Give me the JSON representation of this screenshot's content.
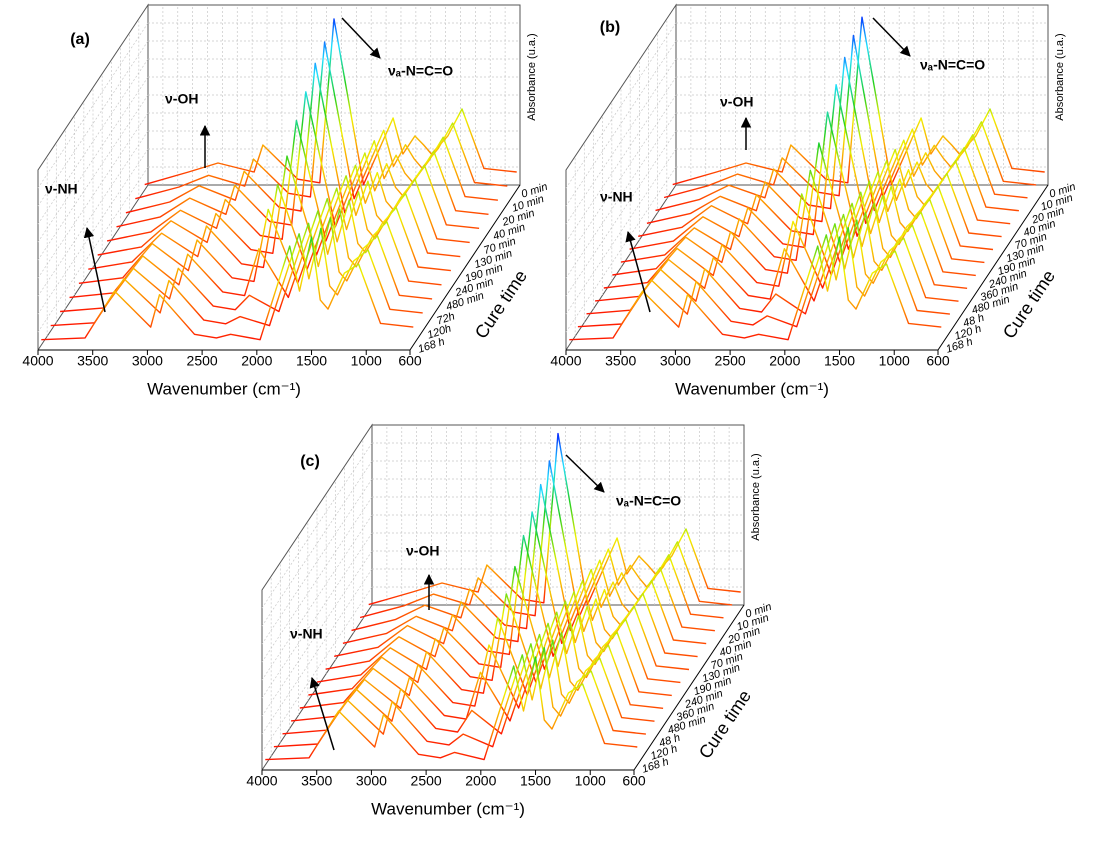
{
  "chart_data": [
    {
      "type": "waterfall",
      "panel_label": "(a)",
      "x_label": "Wavenumber (cm⁻¹)",
      "z_label": "Absorbance (u.a.)",
      "depth_label": "Cure time",
      "annotations": [
        "ν-NH",
        "ν-OH",
        "νₐ-N=C=O"
      ],
      "x": [
        4000,
        3600,
        3330,
        3000,
        2920,
        2600,
        2400,
        2270,
        2000,
        1730,
        1640,
        1530,
        1450,
        1380,
        1230,
        1100,
        900,
        600
      ],
      "xlim": [
        4000,
        600
      ],
      "xticks": [
        4000,
        3500,
        3000,
        2500,
        2000,
        1500,
        1000,
        600
      ],
      "zlim": [
        0,
        10
      ],
      "colormap": [
        "#ff0000",
        "#ff9000",
        "#f0f000",
        "#20d020",
        "#20e0ff",
        "#0010ff"
      ],
      "series": [
        {
          "name": "0 min",
          "values": [
            0.3,
            1.0,
            1.5,
            1.0,
            2.5,
            0.6,
            0.4,
            9.5,
            0.3,
            4.0,
            2.0,
            3.0,
            2.5,
            2.0,
            3.0,
            4.5,
            1.2,
            1.0
          ]
        },
        {
          "name": "10 min",
          "values": [
            0.3,
            0.95,
            1.6,
            1.0,
            2.5,
            0.6,
            0.4,
            9.0,
            0.3,
            4.1,
            2.1,
            3.3,
            2.5,
            2.0,
            3.1,
            4.5,
            1.2,
            1.0
          ]
        },
        {
          "name": "20 min",
          "values": [
            0.3,
            0.9,
            1.8,
            1.0,
            2.6,
            0.6,
            0.4,
            8.6,
            0.3,
            4.3,
            2.2,
            3.5,
            2.5,
            2.0,
            3.2,
            4.5,
            1.2,
            1.0
          ]
        },
        {
          "name": "40 min",
          "values": [
            0.3,
            0.85,
            1.9,
            1.0,
            2.6,
            0.6,
            0.4,
            7.8,
            0.3,
            4.4,
            2.3,
            3.8,
            2.5,
            2.0,
            3.3,
            4.5,
            1.2,
            1.0
          ]
        },
        {
          "name": "70 min",
          "values": [
            0.3,
            0.8,
            2.0,
            1.0,
            2.6,
            0.6,
            0.4,
            7.0,
            0.3,
            4.5,
            2.4,
            4.1,
            2.5,
            2.0,
            3.4,
            4.5,
            1.2,
            1.0
          ]
        },
        {
          "name": "130 min",
          "values": [
            0.3,
            0.75,
            2.2,
            1.0,
            2.6,
            0.6,
            0.4,
            5.8,
            0.3,
            4.7,
            2.5,
            4.4,
            2.5,
            2.0,
            3.5,
            4.5,
            1.2,
            1.0
          ]
        },
        {
          "name": "190 min",
          "values": [
            0.3,
            0.7,
            2.3,
            1.0,
            2.7,
            0.6,
            0.4,
            5.0,
            0.3,
            4.8,
            2.5,
            4.6,
            2.5,
            2.0,
            3.5,
            4.5,
            1.2,
            1.0
          ]
        },
        {
          "name": "240 min",
          "values": [
            0.3,
            0.6,
            2.5,
            1.0,
            2.7,
            0.6,
            0.4,
            4.4,
            0.3,
            5.0,
            2.6,
            4.9,
            2.5,
            2.0,
            3.6,
            4.5,
            1.2,
            1.0
          ]
        },
        {
          "name": "480 min",
          "values": [
            0.3,
            0.55,
            2.6,
            1.0,
            2.7,
            0.6,
            0.4,
            3.0,
            0.3,
            5.1,
            2.7,
            5.2,
            2.5,
            2.0,
            3.7,
            4.5,
            1.2,
            1.0
          ]
        },
        {
          "name": "72h",
          "values": [
            0.3,
            0.5,
            2.7,
            1.0,
            2.7,
            0.6,
            0.4,
            1.2,
            0.3,
            5.2,
            2.8,
            5.5,
            2.5,
            2.0,
            3.8,
            4.5,
            1.2,
            1.0
          ]
        },
        {
          "name": "120h",
          "values": [
            0.3,
            0.45,
            2.9,
            1.0,
            2.8,
            0.6,
            0.4,
            0.8,
            0.3,
            5.4,
            2.9,
            5.7,
            2.5,
            2.0,
            3.9,
            4.5,
            1.2,
            1.0
          ]
        },
        {
          "name": "168 h",
          "values": [
            0.3,
            0.4,
            3.0,
            1.0,
            2.8,
            0.6,
            0.4,
            0.6,
            0.3,
            5.5,
            3.0,
            6.0,
            2.5,
            2.0,
            4.0,
            4.5,
            1.2,
            1.0
          ]
        }
      ]
    },
    {
      "type": "waterfall",
      "panel_label": "(b)",
      "x_label": "Wavenumber (cm⁻¹)",
      "z_label": "Absorbance (u.a.)",
      "depth_label": "Cure time",
      "annotations": [
        "ν-NH",
        "ν-OH",
        "νₐ-N=C=O"
      ],
      "x": [
        4000,
        3600,
        3330,
        3000,
        2920,
        2600,
        2400,
        2270,
        2000,
        1730,
        1640,
        1530,
        1450,
        1380,
        1230,
        1100,
        900,
        600
      ],
      "xlim": [
        4000,
        600
      ],
      "xticks": [
        4000,
        3500,
        3000,
        2500,
        2000,
        1500,
        1000,
        600
      ],
      "zlim": [
        0,
        10
      ],
      "colormap": [
        "#ff0000",
        "#ff9000",
        "#f0f000",
        "#20d020",
        "#20e0ff",
        "#0010ff"
      ],
      "series": [
        {
          "name": "0 min",
          "values": [
            0.3,
            1.0,
            1.5,
            1.0,
            2.5,
            0.6,
            0.4,
            9.6,
            0.3,
            4.0,
            2.0,
            3.0,
            2.5,
            2.0,
            3.0,
            4.5,
            1.2,
            1.0
          ]
        },
        {
          "name": "10 min",
          "values": [
            0.3,
            0.95,
            1.6,
            1.0,
            2.5,
            0.6,
            0.4,
            9.3,
            0.3,
            4.1,
            2.1,
            3.2,
            2.5,
            2.0,
            3.1,
            4.5,
            1.2,
            1.0
          ]
        },
        {
          "name": "20 min",
          "values": [
            0.3,
            0.9,
            1.7,
            1.0,
            2.6,
            0.6,
            0.4,
            8.8,
            0.3,
            4.2,
            2.2,
            3.5,
            2.5,
            2.0,
            3.2,
            4.5,
            1.2,
            1.0
          ]
        },
        {
          "name": "40 min",
          "values": [
            0.3,
            0.85,
            1.8,
            1.0,
            2.6,
            0.6,
            0.4,
            8.0,
            0.3,
            4.4,
            2.3,
            3.7,
            2.5,
            2.0,
            3.3,
            4.5,
            1.2,
            1.0
          ]
        },
        {
          "name": "70 min",
          "values": [
            0.3,
            0.8,
            2.0,
            1.0,
            2.6,
            0.6,
            0.4,
            7.2,
            0.3,
            4.5,
            2.3,
            4.0,
            2.5,
            2.0,
            3.3,
            4.5,
            1.2,
            1.0
          ]
        },
        {
          "name": "130 min",
          "values": [
            0.3,
            0.75,
            2.1,
            1.0,
            2.6,
            0.6,
            0.4,
            6.2,
            0.3,
            4.6,
            2.4,
            4.2,
            2.5,
            2.0,
            3.4,
            4.5,
            1.2,
            1.0
          ]
        },
        {
          "name": "190 min",
          "values": [
            0.3,
            0.7,
            2.2,
            1.0,
            2.7,
            0.6,
            0.4,
            5.4,
            0.3,
            4.8,
            2.5,
            4.5,
            2.5,
            2.0,
            3.5,
            4.5,
            1.2,
            1.0
          ]
        },
        {
          "name": "240 min",
          "values": [
            0.3,
            0.65,
            2.4,
            1.0,
            2.7,
            0.6,
            0.4,
            4.8,
            0.3,
            4.9,
            2.6,
            4.7,
            2.5,
            2.0,
            3.6,
            4.5,
            1.2,
            1.0
          ]
        },
        {
          "name": "360 min",
          "values": [
            0.3,
            0.6,
            2.5,
            1.0,
            2.7,
            0.6,
            0.4,
            4.0,
            0.3,
            5.0,
            2.6,
            5.0,
            2.5,
            2.0,
            3.7,
            4.5,
            1.2,
            1.0
          ]
        },
        {
          "name": "480 min",
          "values": [
            0.3,
            0.55,
            2.6,
            1.0,
            2.7,
            0.6,
            0.4,
            3.2,
            0.3,
            5.1,
            2.7,
            5.2,
            2.5,
            2.0,
            3.7,
            4.5,
            1.2,
            1.0
          ]
        },
        {
          "name": "48 h",
          "values": [
            0.3,
            0.5,
            2.8,
            1.0,
            2.8,
            0.6,
            0.4,
            1.4,
            0.3,
            5.3,
            2.8,
            5.5,
            2.5,
            2.0,
            3.8,
            4.5,
            1.2,
            1.0
          ]
        },
        {
          "name": "120 h",
          "values": [
            0.3,
            0.45,
            2.9,
            1.0,
            2.8,
            0.6,
            0.4,
            0.9,
            0.3,
            5.4,
            2.9,
            5.8,
            2.5,
            2.0,
            3.9,
            4.5,
            1.2,
            1.0
          ]
        },
        {
          "name": "168 h",
          "values": [
            0.3,
            0.4,
            3.0,
            1.0,
            2.8,
            0.6,
            0.4,
            0.6,
            0.3,
            5.5,
            3.0,
            6.0,
            2.5,
            2.0,
            4.0,
            4.5,
            1.2,
            1.0
          ]
        }
      ]
    },
    {
      "type": "waterfall",
      "panel_label": "(c)",
      "x_label": "Wavenumber (cm⁻¹)",
      "z_label": "Absorbance (u.a.)",
      "depth_label": "Cure time",
      "annotations": [
        "ν-NH",
        "ν-OH",
        "νₐ-N=C=O"
      ],
      "x": [
        4000,
        3600,
        3330,
        3000,
        2920,
        2600,
        2400,
        2270,
        2000,
        1730,
        1640,
        1530,
        1450,
        1380,
        1230,
        1100,
        900,
        600
      ],
      "xlim": [
        4000,
        600
      ],
      "xticks": [
        4000,
        3500,
        3000,
        2500,
        2000,
        1500,
        1000,
        600
      ],
      "zlim": [
        0,
        10
      ],
      "colormap": [
        "#ff0000",
        "#ff9000",
        "#f0f000",
        "#20d020",
        "#20e0ff",
        "#0010ff"
      ],
      "series": [
        {
          "name": "0 min",
          "values": [
            0.3,
            1.0,
            1.5,
            1.0,
            2.5,
            0.6,
            0.4,
            9.8,
            0.3,
            4.0,
            2.0,
            3.0,
            2.5,
            2.0,
            3.0,
            4.5,
            1.2,
            1.0
          ]
        },
        {
          "name": "10 min",
          "values": [
            0.3,
            0.95,
            1.6,
            1.0,
            2.5,
            0.6,
            0.4,
            9.0,
            0.3,
            4.1,
            2.1,
            3.2,
            2.5,
            2.0,
            3.1,
            4.5,
            1.2,
            1.0
          ]
        },
        {
          "name": "20 min",
          "values": [
            0.3,
            0.9,
            1.7,
            1.0,
            2.6,
            0.6,
            0.4,
            8.4,
            0.3,
            4.2,
            2.2,
            3.5,
            2.5,
            2.0,
            3.2,
            4.5,
            1.2,
            1.0
          ]
        },
        {
          "name": "40 min",
          "values": [
            0.3,
            0.85,
            1.8,
            1.0,
            2.6,
            0.6,
            0.4,
            7.6,
            0.3,
            4.4,
            2.3,
            3.7,
            2.5,
            2.0,
            3.3,
            4.5,
            1.2,
            1.0
          ]
        },
        {
          "name": "70 min",
          "values": [
            0.3,
            0.8,
            2.0,
            1.0,
            2.6,
            0.6,
            0.4,
            7.0,
            0.3,
            4.5,
            2.3,
            4.0,
            2.5,
            2.0,
            3.3,
            4.5,
            1.2,
            1.0
          ]
        },
        {
          "name": "130 min",
          "values": [
            0.3,
            0.75,
            2.1,
            1.0,
            2.6,
            0.6,
            0.4,
            6.0,
            0.3,
            4.6,
            2.4,
            4.2,
            2.5,
            2.0,
            3.4,
            4.5,
            1.2,
            1.0
          ]
        },
        {
          "name": "190 min",
          "values": [
            0.3,
            0.7,
            2.2,
            1.0,
            2.7,
            0.6,
            0.4,
            5.2,
            0.3,
            4.8,
            2.5,
            4.5,
            2.5,
            2.0,
            3.5,
            4.5,
            1.2,
            1.0
          ]
        },
        {
          "name": "240 min",
          "values": [
            0.3,
            0.65,
            2.4,
            1.0,
            2.7,
            0.6,
            0.4,
            4.6,
            0.3,
            4.9,
            2.6,
            4.7,
            2.5,
            2.0,
            3.6,
            4.5,
            1.2,
            1.0
          ]
        },
        {
          "name": "360 min",
          "values": [
            0.3,
            0.6,
            2.5,
            1.0,
            2.7,
            0.6,
            0.4,
            3.8,
            0.3,
            5.0,
            2.6,
            5.0,
            2.5,
            2.0,
            3.7,
            4.5,
            1.2,
            1.0
          ]
        },
        {
          "name": "480 min",
          "values": [
            0.3,
            0.55,
            2.6,
            1.0,
            2.7,
            0.6,
            0.4,
            3.0,
            0.3,
            5.1,
            2.7,
            5.2,
            2.5,
            2.0,
            3.7,
            4.5,
            1.2,
            1.0
          ]
        },
        {
          "name": "48 h",
          "values": [
            0.3,
            0.5,
            2.8,
            1.0,
            2.8,
            0.6,
            0.4,
            1.6,
            0.3,
            5.3,
            2.8,
            5.5,
            2.5,
            2.0,
            3.8,
            4.5,
            1.2,
            1.0
          ]
        },
        {
          "name": "120 h",
          "values": [
            0.3,
            0.45,
            2.9,
            1.0,
            2.8,
            0.6,
            0.4,
            1.0,
            0.3,
            5.4,
            2.9,
            5.8,
            2.5,
            2.0,
            3.9,
            4.5,
            1.2,
            1.0
          ]
        },
        {
          "name": "168 h",
          "values": [
            0.3,
            0.4,
            3.0,
            1.0,
            2.8,
            0.6,
            0.4,
            0.7,
            0.3,
            5.5,
            3.0,
            6.0,
            2.5,
            2.0,
            4.0,
            4.5,
            1.2,
            1.0
          ]
        }
      ]
    }
  ]
}
